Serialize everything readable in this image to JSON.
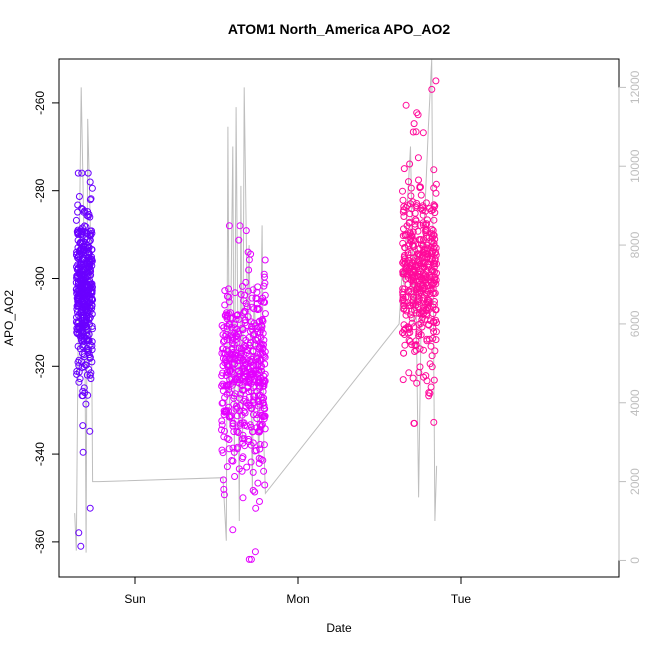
{
  "chart_data": {
    "type": "scatter",
    "title": "ATOM1 North_America APO_AO2",
    "xlabel": "Date",
    "ylabel": "APO_AO2",
    "x_ticks": [
      "Sun",
      "Mon",
      "Tue"
    ],
    "y_ticks": [
      -260,
      -280,
      -300,
      -320,
      -340,
      -360
    ],
    "y_right_ticks": [
      0,
      2000,
      4000,
      6000,
      8000,
      10000,
      12000
    ],
    "ylim": [
      -368,
      -250
    ],
    "y_right_lim": [
      -420,
      12720
    ],
    "colors": {
      "cluster_sat": "#6a00ff",
      "cluster_mon": "#e400ff",
      "cluster_tue": "#ff0a9a",
      "secondary_line": "#bebebe",
      "axis": "#000000"
    },
    "series": [
      {
        "color": "#6a00ff",
        "clusters": [
          {
            "x_start": -0.36,
            "x_end": -0.26,
            "y_mean": -303,
            "y_sd": 9,
            "y_min": -361,
            "y_max": -276,
            "n": 420
          }
        ]
      },
      {
        "color": "#e400ff",
        "clusters": [
          {
            "x_start": 0.53,
            "x_end": 0.8,
            "y_mean": -322,
            "y_sd": 11,
            "y_min": -364,
            "y_max": -288,
            "n": 480
          }
        ]
      },
      {
        "color": "#ff0a9a",
        "clusters": [
          {
            "x_start": 1.64,
            "x_end": 1.85,
            "y_mean": -300,
            "y_sd": 10,
            "y_min": -333,
            "y_max": -255,
            "n": 440
          }
        ]
      }
    ],
    "secondary_series": {
      "axis": "right",
      "color": "#bebebe",
      "x": [
        -0.37,
        -0.36,
        -0.35,
        -0.33,
        -0.31,
        -0.3,
        -0.29,
        -0.27,
        -0.26,
        -0.25,
        -0.24,
        -0.22,
        0.54,
        0.56,
        0.57,
        0.58,
        0.6,
        0.61,
        0.62,
        0.64,
        0.65,
        0.66,
        0.67,
        0.69,
        0.7,
        0.72,
        0.73,
        0.75,
        0.76,
        0.78,
        0.79,
        0.8,
        1.62,
        1.64,
        1.65,
        1.67,
        1.69,
        1.71,
        1.72,
        1.74,
        1.76,
        1.78,
        1.8,
        1.82,
        1.84,
        1.85
      ],
      "values": [
        1200,
        250,
        5200,
        12000,
        7500,
        200,
        11200,
        7800,
        2000,
        2000,
        2000,
        2000,
        2100,
        500,
        11000,
        3500,
        10500,
        2500,
        11500,
        1000,
        9500,
        3000,
        12000,
        6000,
        8000,
        1700,
        7000,
        4000,
        2500,
        8500,
        3000,
        1700,
        6000,
        7400,
        7000,
        9000,
        10500,
        6000,
        8000,
        1600,
        7500,
        9000,
        11000,
        12700,
        1000,
        2400
      ]
    }
  }
}
